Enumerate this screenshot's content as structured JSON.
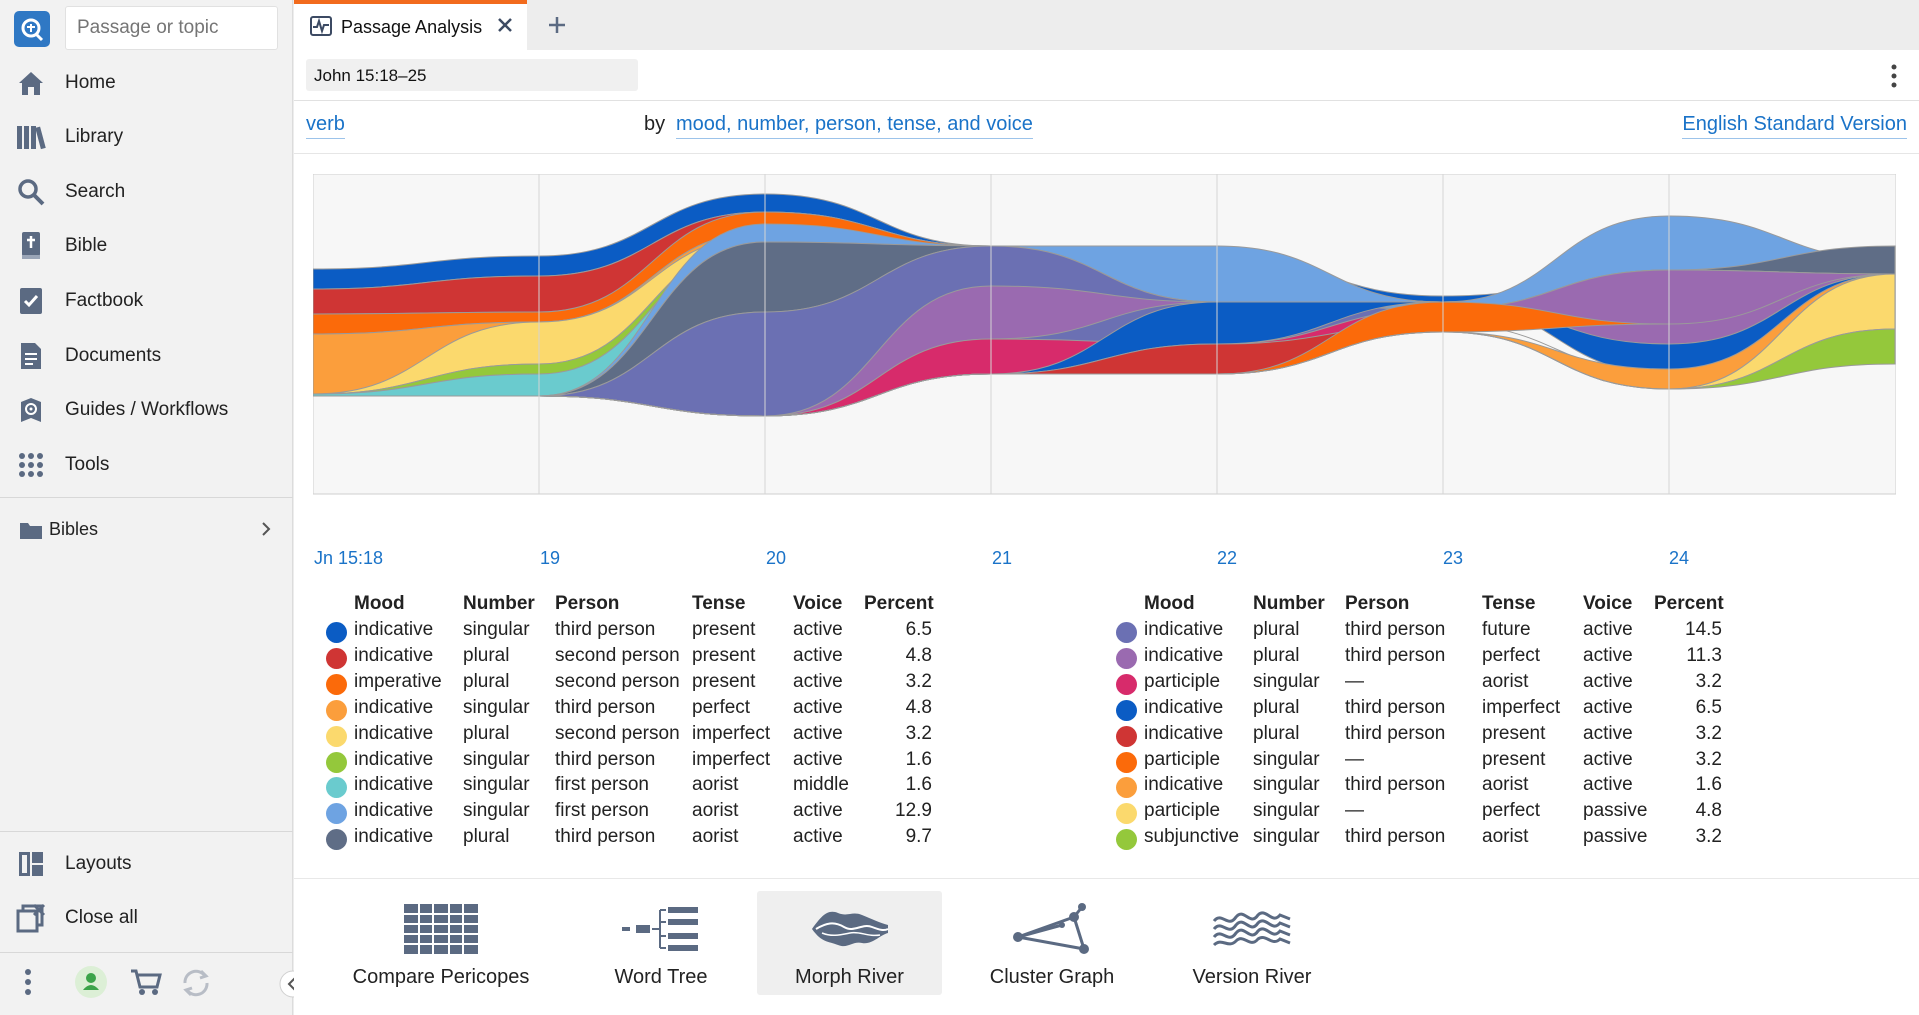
{
  "sidebar": {
    "search_placeholder": "Passage or topic",
    "items": [
      {
        "label": "Home",
        "icon": "home-icon"
      },
      {
        "label": "Library",
        "icon": "library-icon"
      },
      {
        "label": "Search",
        "icon": "search-icon"
      },
      {
        "label": "Bible",
        "icon": "bible-icon"
      },
      {
        "label": "Factbook",
        "icon": "factbook-icon"
      },
      {
        "label": "Documents",
        "icon": "documents-icon"
      },
      {
        "label": "Guides / Workflows",
        "icon": "guides-icon"
      },
      {
        "label": "Tools",
        "icon": "tools-icon"
      }
    ],
    "bibles_label": "Bibles",
    "bottom_items": [
      {
        "label": "Layouts",
        "icon": "layouts-icon"
      },
      {
        "label": "Close all",
        "icon": "close-all-icon"
      }
    ]
  },
  "tabs": {
    "active_label": "Passage Analysis"
  },
  "panel": {
    "reference": "John 15:18–25",
    "query_subject": "verb",
    "query_by": "by",
    "query_criteria": "mood, number, person, tense, and voice",
    "version": "English Standard Version"
  },
  "chart_data": {
    "type": "area",
    "x": [
      "Jn 15:18",
      "19",
      "20",
      "21",
      "22",
      "23",
      "24"
    ]
  },
  "legend_headers": {
    "mood": "Mood",
    "number": "Number",
    "person": "Person",
    "tense": "Tense",
    "voice": "Voice",
    "percent": "Percent"
  },
  "legend_left": [
    {
      "color": "#0b5cc4",
      "mood": "indicative",
      "number": "singular",
      "person": "third person",
      "tense": "present",
      "voice": "active",
      "percent": "6.5"
    },
    {
      "color": "#cf3534",
      "mood": "indicative",
      "number": "plural",
      "person": "second person",
      "tense": "present",
      "voice": "active",
      "percent": "4.8"
    },
    {
      "color": "#fb6a0a",
      "mood": "imperative",
      "number": "plural",
      "person": "second person",
      "tense": "present",
      "voice": "active",
      "percent": "3.2"
    },
    {
      "color": "#fb9e3c",
      "mood": "indicative",
      "number": "singular",
      "person": "third person",
      "tense": "perfect",
      "voice": "active",
      "percent": "4.8"
    },
    {
      "color": "#fbd96d",
      "mood": "indicative",
      "number": "plural",
      "person": "second person",
      "tense": "imperfect",
      "voice": "active",
      "percent": "3.2"
    },
    {
      "color": "#94c83b",
      "mood": "indicative",
      "number": "singular",
      "person": "third person",
      "tense": "imperfect",
      "voice": "active",
      "percent": "1.6"
    },
    {
      "color": "#6acbce",
      "mood": "indicative",
      "number": "singular",
      "person": "first person",
      "tense": "aorist",
      "voice": "middle",
      "percent": "1.6"
    },
    {
      "color": "#6ea3e2",
      "mood": "indicative",
      "number": "singular",
      "person": "first person",
      "tense": "aorist",
      "voice": "active",
      "percent": "12.9"
    },
    {
      "color": "#5f6d86",
      "mood": "indicative",
      "number": "plural",
      "person": "third person",
      "tense": "aorist",
      "voice": "active",
      "percent": "9.7"
    }
  ],
  "legend_right": [
    {
      "color": "#6b70b3",
      "mood": "indicative",
      "number": "plural",
      "person": "third person",
      "tense": "future",
      "voice": "active",
      "percent": "14.5"
    },
    {
      "color": "#9a6ab0",
      "mood": "indicative",
      "number": "plural",
      "person": "third person",
      "tense": "perfect",
      "voice": "active",
      "percent": "11.3"
    },
    {
      "color": "#d72b6b",
      "mood": "participle",
      "number": "singular",
      "person": "—",
      "tense": "aorist",
      "voice": "active",
      "percent": "3.2"
    },
    {
      "color": "#0b5cc4",
      "mood": "indicative",
      "number": "plural",
      "person": "third person",
      "tense": "imperfect",
      "voice": "active",
      "percent": "6.5"
    },
    {
      "color": "#cf3534",
      "mood": "indicative",
      "number": "plural",
      "person": "third person",
      "tense": "present",
      "voice": "active",
      "percent": "3.2"
    },
    {
      "color": "#fb6a0a",
      "mood": "participle",
      "number": "singular",
      "person": "—",
      "tense": "present",
      "voice": "active",
      "percent": "3.2"
    },
    {
      "color": "#fb9e3c",
      "mood": "indicative",
      "number": "singular",
      "person": "third person",
      "tense": "aorist",
      "voice": "active",
      "percent": "1.6"
    },
    {
      "color": "#fbd96d",
      "mood": "participle",
      "number": "singular",
      "person": "—",
      "tense": "perfect",
      "voice": "passive",
      "percent": "4.8"
    },
    {
      "color": "#94c83b",
      "mood": "subjunctive",
      "number": "singular",
      "person": "third person",
      "tense": "aorist",
      "voice": "passive",
      "percent": "3.2"
    }
  ],
  "tools": [
    {
      "label": "Compare Pericopes",
      "icon": "compare-pericopes-icon"
    },
    {
      "label": "Word Tree",
      "icon": "word-tree-icon"
    },
    {
      "label": "Morph River",
      "icon": "morph-river-icon"
    },
    {
      "label": "Cluster Graph",
      "icon": "cluster-graph-icon"
    },
    {
      "label": "Version River",
      "icon": "version-river-icon"
    }
  ],
  "colors": {
    "accent": "#f26b1d",
    "link": "#1a73c8",
    "logo": "#2f78c4"
  }
}
